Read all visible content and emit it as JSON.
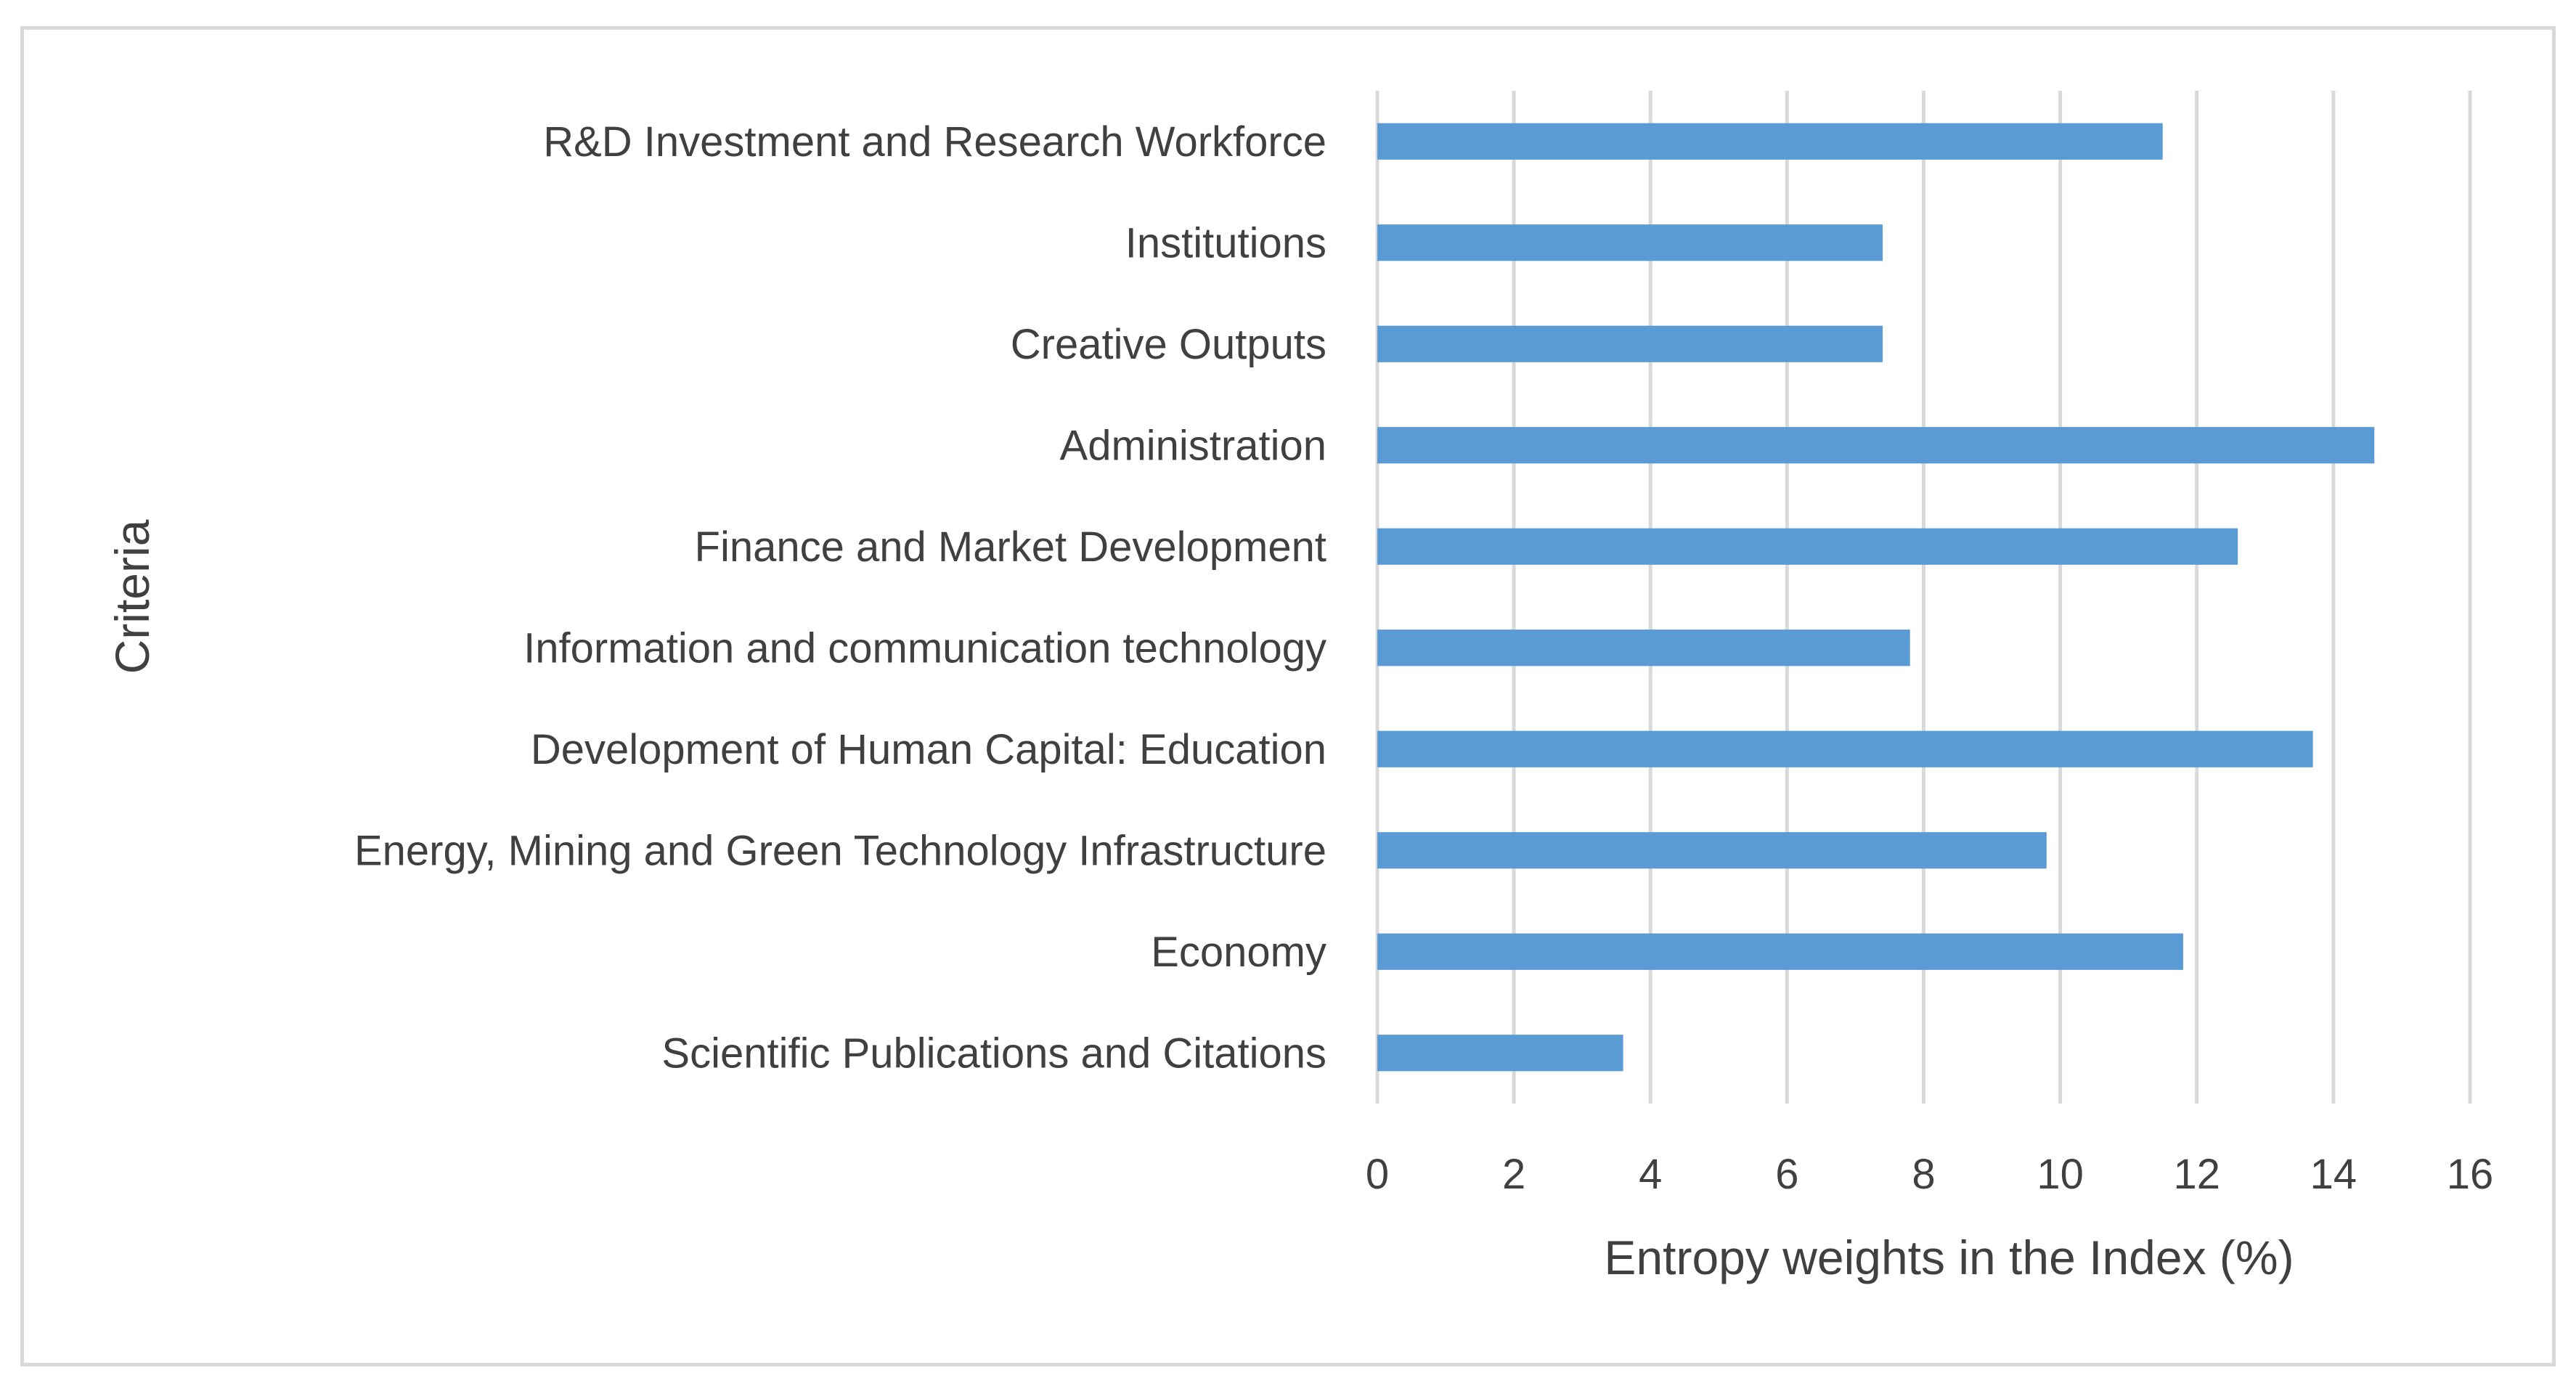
{
  "chart_data": {
    "type": "bar",
    "orientation": "horizontal",
    "title": "",
    "xlabel": "Entropy weights in the Index (%)",
    "ylabel": "Criteria",
    "xlim": [
      0,
      16
    ],
    "x_ticks": [
      0,
      2,
      4,
      6,
      8,
      10,
      12,
      14,
      16
    ],
    "grid": "vertical-major",
    "legend": "none",
    "categories": [
      "R&D Investment and Research Workforce",
      "Institutions",
      "Creative Outputs",
      "Administration",
      "Finance and Market Development",
      "Information and communication technology",
      "Development of Human Capital: Education",
      "Energy, Mining and Green Technology Infrastructure",
      "Economy",
      "Scientific Publications and Citations"
    ],
    "values": [
      11.5,
      7.4,
      7.4,
      14.6,
      12.6,
      7.8,
      13.7,
      9.8,
      11.8,
      3.6
    ],
    "colors": {
      "bar": "#5b9bd5",
      "grid": "#d9d9d9",
      "text": "#404040",
      "frame": "#d9d9d9"
    }
  }
}
